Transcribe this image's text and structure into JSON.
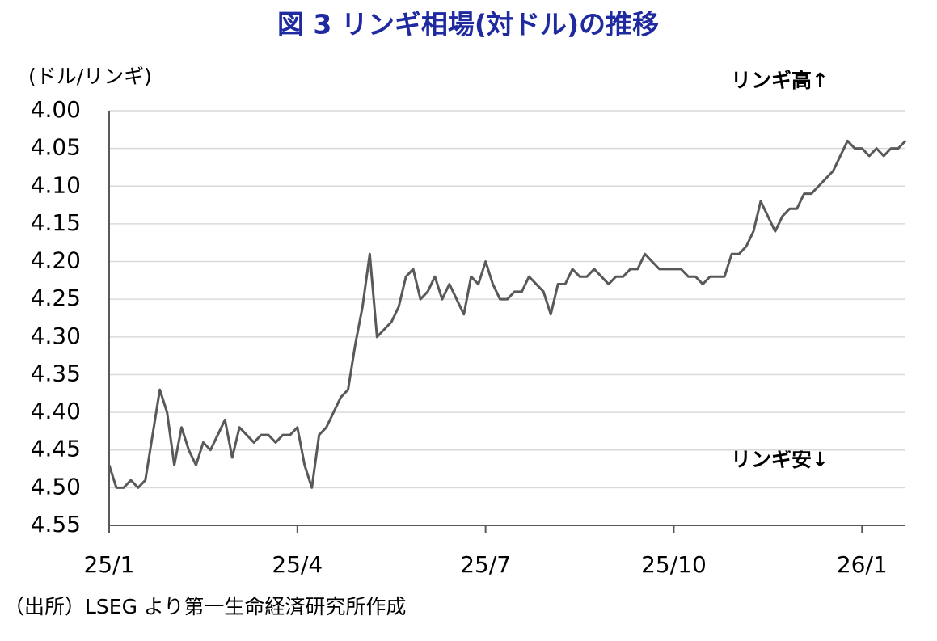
{
  "chart_data": {
    "type": "line",
    "title": "図 3 リンギ相場(対ドル)の推移",
    "y_label": "(ドル/リンギ)",
    "annotations": [
      "リンギ高↑",
      "リンギ安↓"
    ],
    "source": "（出所）LSEG より第一生命経済研究所作成",
    "categories": [
      "25/1",
      null,
      null,
      null,
      null,
      null,
      null,
      null,
      null,
      null,
      null,
      null,
      null,
      null,
      null,
      null,
      null,
      null,
      null,
      null,
      null,
      null,
      null,
      null,
      null,
      null,
      "25/4",
      null,
      null,
      null,
      null,
      null,
      null,
      null,
      null,
      null,
      null,
      null,
      null,
      null,
      null,
      null,
      null,
      null,
      null,
      null,
      null,
      null,
      null,
      null,
      null,
      null,
      "25/7",
      null,
      null,
      null,
      null,
      null,
      null,
      null,
      null,
      null,
      null,
      null,
      null,
      null,
      null,
      null,
      null,
      null,
      null,
      null,
      null,
      null,
      null,
      null,
      null,
      null,
      "25/10",
      null,
      null,
      null,
      null,
      null,
      null,
      null,
      null,
      null,
      null,
      null,
      null,
      null,
      null,
      null,
      null,
      null,
      null,
      null,
      null,
      null,
      null,
      null,
      null,
      null,
      "26/1",
      null,
      null,
      null,
      null,
      null,
      null
    ],
    "series": [
      {
        "color": "#595959",
        "values": [
          4.47,
          4.5,
          4.5,
          4.49,
          4.5,
          4.49,
          4.43,
          4.37,
          4.4,
          4.47,
          4.42,
          4.45,
          4.47,
          4.44,
          4.45,
          4.43,
          4.41,
          4.46,
          4.42,
          4.43,
          4.44,
          4.43,
          4.43,
          4.44,
          4.43,
          4.43,
          4.42,
          4.47,
          4.5,
          4.43,
          4.42,
          4.4,
          4.38,
          4.37,
          4.31,
          4.26,
          4.19,
          4.3,
          4.29,
          4.28,
          4.26,
          4.22,
          4.21,
          4.25,
          4.24,
          4.22,
          4.25,
          4.23,
          4.25,
          4.27,
          4.22,
          4.23,
          4.2,
          4.23,
          4.25,
          4.25,
          4.24,
          4.24,
          4.22,
          4.23,
          4.24,
          4.27,
          4.23,
          4.23,
          4.21,
          4.22,
          4.22,
          4.21,
          4.22,
          4.23,
          4.22,
          4.22,
          4.21,
          4.21,
          4.19,
          4.2,
          4.21,
          4.21,
          4.21,
          4.21,
          4.22,
          4.22,
          4.23,
          4.22,
          4.22,
          4.22,
          4.19,
          4.19,
          4.18,
          4.16,
          4.12,
          4.14,
          4.16,
          4.14,
          4.13,
          4.13,
          4.11,
          4.11,
          4.1,
          4.09,
          4.08,
          4.06,
          4.04,
          4.05,
          4.05,
          4.06,
          4.05,
          4.06,
          4.05,
          4.05,
          4.04
        ]
      }
    ],
    "ylim": [
      4.0,
      4.55
    ],
    "y_inverted": true,
    "yticks": [
      {
        "value": 4.0,
        "label": "4.00"
      },
      {
        "value": 4.05,
        "label": "4.05"
      },
      {
        "value": 4.1,
        "label": "4.10"
      },
      {
        "value": 4.15,
        "label": "4.15"
      },
      {
        "value": 4.2,
        "label": "4.20"
      },
      {
        "value": 4.25,
        "label": "4.25"
      },
      {
        "value": 4.3,
        "label": "4.30"
      },
      {
        "value": 4.35,
        "label": "4.35"
      },
      {
        "value": 4.4,
        "label": "4.40"
      },
      {
        "value": 4.45,
        "label": "4.45"
      },
      {
        "value": 4.5,
        "label": "4.50"
      },
      {
        "value": 4.55,
        "label": "4.55"
      }
    ],
    "grid": true
  }
}
